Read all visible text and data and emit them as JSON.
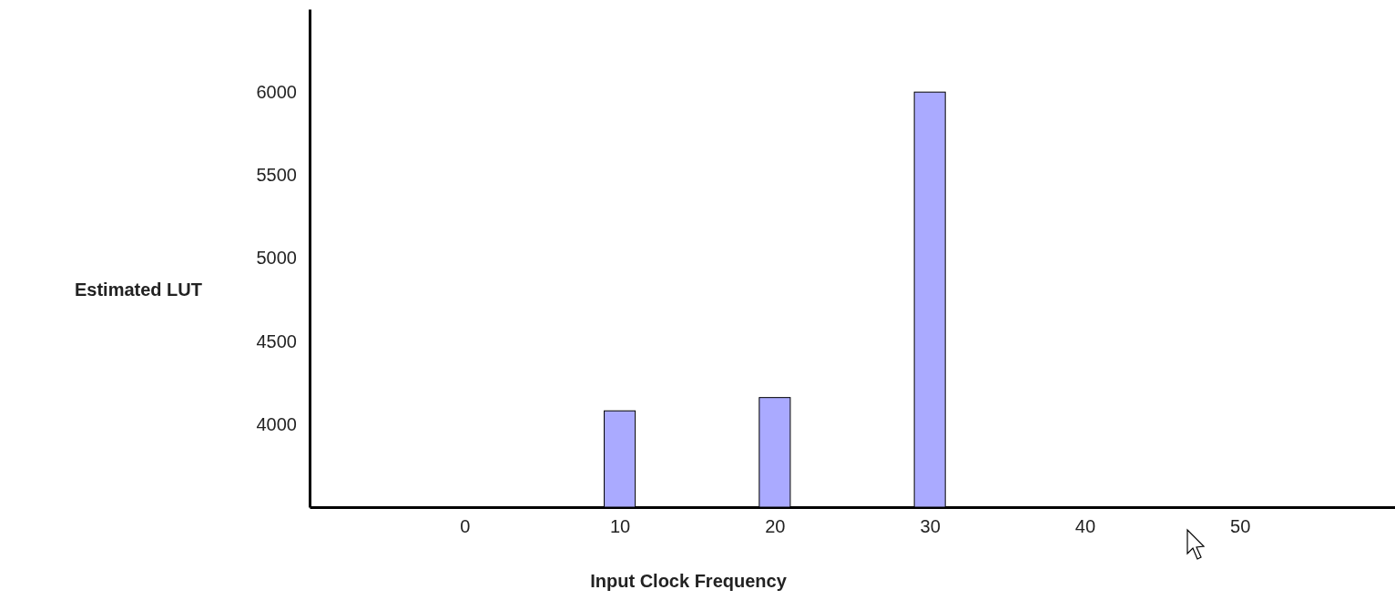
{
  "chart_data": {
    "type": "bar",
    "xlabel": "Input Clock Frequency",
    "ylabel": "Estimated LUT",
    "x": [
      10,
      20,
      30
    ],
    "values": [
      4080,
      4160,
      6000
    ],
    "color": "#aaaaff",
    "xlim": [
      -10,
      60
    ],
    "xticks": [
      0,
      10,
      20,
      30,
      40,
      50
    ],
    "ylim": [
      3500,
      6500
    ],
    "yticks": [
      4000,
      4500,
      5000,
      5500,
      6000
    ],
    "grid": false
  }
}
